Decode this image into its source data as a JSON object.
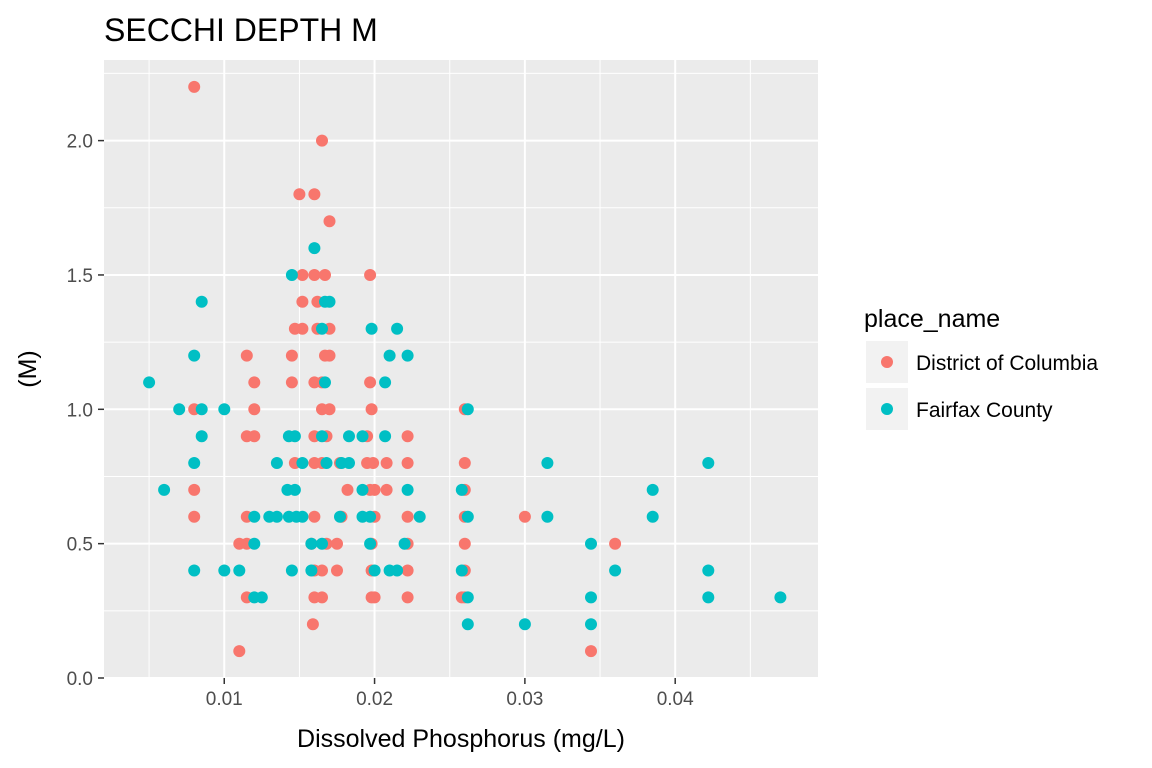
{
  "chart_data": {
    "type": "scatter",
    "title": "SECCHI DEPTH M",
    "xlabel": "Dissolved Phosphorus (mg/L)",
    "ylabel": "(M)",
    "xlim": [
      0.002,
      0.0495
    ],
    "ylim": [
      0,
      2.3
    ],
    "x_ticks": [
      0.01,
      0.02,
      0.03,
      0.04
    ],
    "x_tick_labels": [
      "0.01",
      "0.02",
      "0.03",
      "0.04"
    ],
    "y_ticks": [
      0.0,
      0.5,
      1.0,
      1.5,
      2.0
    ],
    "y_tick_labels": [
      "0.0",
      "0.5",
      "1.0",
      "1.5",
      "2.0"
    ],
    "grid": true,
    "legend": {
      "title": "place_name",
      "position": "right"
    },
    "series": [
      {
        "name": "District of Columbia",
        "color": "#F8766D",
        "points": [
          [
            0.008,
            2.2
          ],
          [
            0.0165,
            2.0
          ],
          [
            0.015,
            1.8
          ],
          [
            0.016,
            1.8
          ],
          [
            0.017,
            1.7
          ],
          [
            0.0152,
            1.5
          ],
          [
            0.016,
            1.5
          ],
          [
            0.0167,
            1.5
          ],
          [
            0.0197,
            1.5
          ],
          [
            0.0152,
            1.4
          ],
          [
            0.0162,
            1.4
          ],
          [
            0.0147,
            1.3
          ],
          [
            0.0152,
            1.3
          ],
          [
            0.0162,
            1.3
          ],
          [
            0.017,
            1.3
          ],
          [
            0.0115,
            1.2
          ],
          [
            0.0145,
            1.2
          ],
          [
            0.0167,
            1.2
          ],
          [
            0.017,
            1.2
          ],
          [
            0.012,
            1.1
          ],
          [
            0.0145,
            1.1
          ],
          [
            0.016,
            1.1
          ],
          [
            0.0165,
            1.1
          ],
          [
            0.0197,
            1.1
          ],
          [
            0.008,
            1.0
          ],
          [
            0.012,
            1.0
          ],
          [
            0.0165,
            1.0
          ],
          [
            0.017,
            1.0
          ],
          [
            0.0198,
            1.0
          ],
          [
            0.026,
            1.0
          ],
          [
            0.0115,
            0.9
          ],
          [
            0.012,
            0.9
          ],
          [
            0.016,
            0.9
          ],
          [
            0.0168,
            0.9
          ],
          [
            0.0195,
            0.9
          ],
          [
            0.0222,
            0.9
          ],
          [
            0.0147,
            0.8
          ],
          [
            0.016,
            0.8
          ],
          [
            0.0165,
            0.8
          ],
          [
            0.0177,
            0.8
          ],
          [
            0.0195,
            0.8
          ],
          [
            0.0199,
            0.8
          ],
          [
            0.0208,
            0.8
          ],
          [
            0.0222,
            0.8
          ],
          [
            0.026,
            0.8
          ],
          [
            0.008,
            0.7
          ],
          [
            0.0182,
            0.7
          ],
          [
            0.0197,
            0.7
          ],
          [
            0.02,
            0.7
          ],
          [
            0.0208,
            0.7
          ],
          [
            0.026,
            0.7
          ],
          [
            0.008,
            0.6
          ],
          [
            0.0115,
            0.6
          ],
          [
            0.016,
            0.6
          ],
          [
            0.0178,
            0.6
          ],
          [
            0.02,
            0.6
          ],
          [
            0.0222,
            0.6
          ],
          [
            0.026,
            0.6
          ],
          [
            0.03,
            0.6
          ],
          [
            0.011,
            0.5
          ],
          [
            0.0115,
            0.5
          ],
          [
            0.0158,
            0.5
          ],
          [
            0.0168,
            0.5
          ],
          [
            0.0175,
            0.5
          ],
          [
            0.0198,
            0.5
          ],
          [
            0.0222,
            0.5
          ],
          [
            0.026,
            0.5
          ],
          [
            0.036,
            0.5
          ],
          [
            0.016,
            0.4
          ],
          [
            0.0165,
            0.4
          ],
          [
            0.0175,
            0.4
          ],
          [
            0.0198,
            0.4
          ],
          [
            0.0222,
            0.4
          ],
          [
            0.026,
            0.4
          ],
          [
            0.0115,
            0.3
          ],
          [
            0.016,
            0.3
          ],
          [
            0.0165,
            0.3
          ],
          [
            0.0198,
            0.3
          ],
          [
            0.02,
            0.3
          ],
          [
            0.0222,
            0.3
          ],
          [
            0.0258,
            0.3
          ],
          [
            0.026,
            0.3
          ],
          [
            0.0159,
            0.2
          ],
          [
            0.011,
            0.1
          ],
          [
            0.0344,
            0.1
          ]
        ]
      },
      {
        "name": "Fairfax County",
        "color": "#00BFC4",
        "points": [
          [
            0.016,
            1.6
          ],
          [
            0.0145,
            1.5
          ],
          [
            0.0167,
            1.4
          ],
          [
            0.017,
            1.4
          ],
          [
            0.0085,
            1.4
          ],
          [
            0.0165,
            1.3
          ],
          [
            0.0198,
            1.3
          ],
          [
            0.0215,
            1.3
          ],
          [
            0.008,
            1.2
          ],
          [
            0.021,
            1.2
          ],
          [
            0.0222,
            1.2
          ],
          [
            0.005,
            1.1
          ],
          [
            0.0167,
            1.1
          ],
          [
            0.0207,
            1.1
          ],
          [
            0.007,
            1.0
          ],
          [
            0.0085,
            1.0
          ],
          [
            0.01,
            1.0
          ],
          [
            0.0262,
            1.0
          ],
          [
            0.0085,
            0.9
          ],
          [
            0.0143,
            0.9
          ],
          [
            0.0147,
            0.9
          ],
          [
            0.0165,
            0.9
          ],
          [
            0.0183,
            0.9
          ],
          [
            0.0192,
            0.9
          ],
          [
            0.0207,
            0.9
          ],
          [
            0.008,
            0.8
          ],
          [
            0.0135,
            0.8
          ],
          [
            0.0152,
            0.8
          ],
          [
            0.0168,
            0.8
          ],
          [
            0.0178,
            0.8
          ],
          [
            0.0183,
            0.8
          ],
          [
            0.0315,
            0.8
          ],
          [
            0.0422,
            0.8
          ],
          [
            0.006,
            0.7
          ],
          [
            0.0142,
            0.7
          ],
          [
            0.0147,
            0.7
          ],
          [
            0.0192,
            0.7
          ],
          [
            0.0222,
            0.7
          ],
          [
            0.0258,
            0.7
          ],
          [
            0.0385,
            0.7
          ],
          [
            0.012,
            0.6
          ],
          [
            0.013,
            0.6
          ],
          [
            0.0135,
            0.6
          ],
          [
            0.0143,
            0.6
          ],
          [
            0.0148,
            0.6
          ],
          [
            0.0152,
            0.6
          ],
          [
            0.0177,
            0.6
          ],
          [
            0.0192,
            0.6
          ],
          [
            0.0197,
            0.6
          ],
          [
            0.023,
            0.6
          ],
          [
            0.0262,
            0.6
          ],
          [
            0.0315,
            0.6
          ],
          [
            0.0385,
            0.6
          ],
          [
            0.012,
            0.5
          ],
          [
            0.0158,
            0.5
          ],
          [
            0.0165,
            0.5
          ],
          [
            0.0197,
            0.5
          ],
          [
            0.022,
            0.5
          ],
          [
            0.0344,
            0.5
          ],
          [
            0.008,
            0.4
          ],
          [
            0.01,
            0.4
          ],
          [
            0.011,
            0.4
          ],
          [
            0.0145,
            0.4
          ],
          [
            0.0158,
            0.4
          ],
          [
            0.02,
            0.4
          ],
          [
            0.021,
            0.4
          ],
          [
            0.0215,
            0.4
          ],
          [
            0.0258,
            0.4
          ],
          [
            0.036,
            0.4
          ],
          [
            0.0422,
            0.4
          ],
          [
            0.012,
            0.3
          ],
          [
            0.0125,
            0.3
          ],
          [
            0.0262,
            0.3
          ],
          [
            0.0344,
            0.3
          ],
          [
            0.0422,
            0.3
          ],
          [
            0.047,
            0.3
          ],
          [
            0.0262,
            0.2
          ],
          [
            0.03,
            0.2
          ],
          [
            0.0344,
            0.2
          ]
        ]
      }
    ]
  }
}
